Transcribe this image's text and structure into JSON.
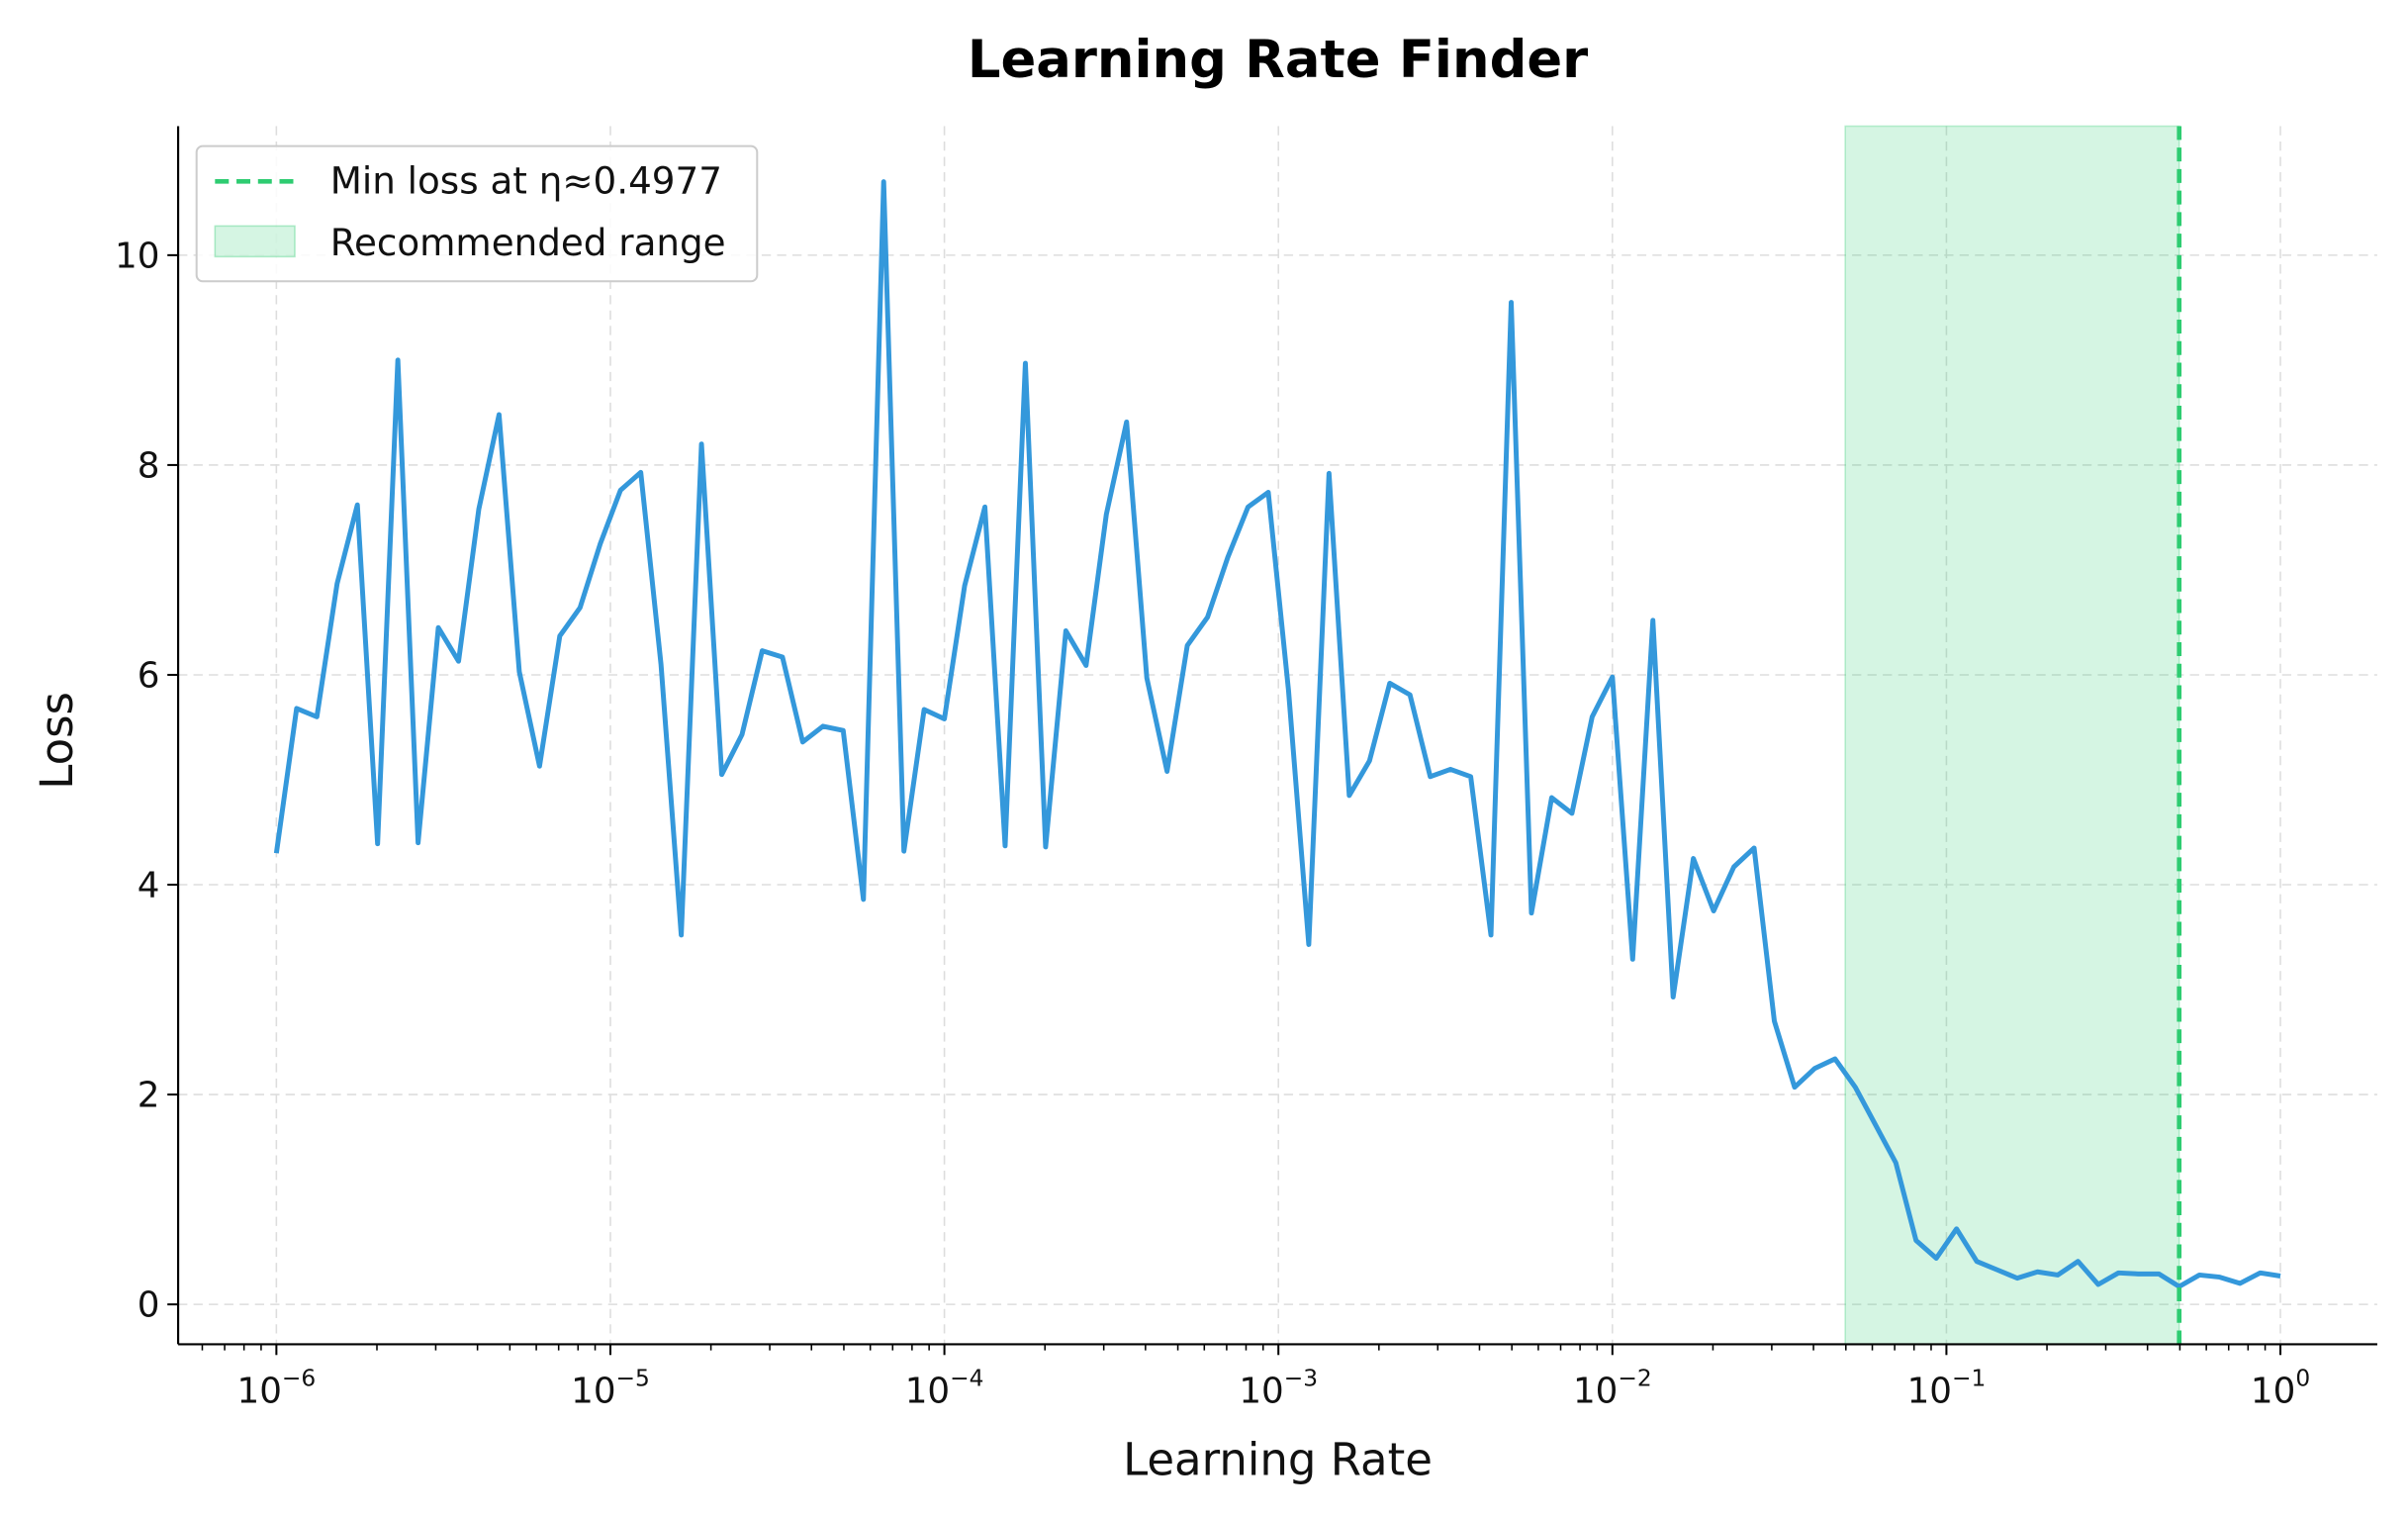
{
  "chart_data": {
    "type": "line",
    "title": "Learning Rate Finder",
    "xlabel": "Learning Rate",
    "ylabel": "Loss",
    "xscale": "log",
    "xlim": [
      5.08e-07,
      1.95
    ],
    "ylim": [
      -0.38,
      11.23
    ],
    "grid": true,
    "legend_placement": "top-left",
    "x_range": {
      "start": 1e-06,
      "stop": 1,
      "num_points": 100,
      "spacing": "log"
    },
    "xtick_labels": [
      {
        "value": 1e-06,
        "base": "10",
        "exp": "−6"
      },
      {
        "value": 1e-05,
        "base": "10",
        "exp": "−5"
      },
      {
        "value": 0.0001,
        "base": "10",
        "exp": "−4"
      },
      {
        "value": 0.001,
        "base": "10",
        "exp": "−3"
      },
      {
        "value": 0.01,
        "base": "10",
        "exp": "−2"
      },
      {
        "value": 0.1,
        "base": "10",
        "exp": "−1"
      },
      {
        "value": 1,
        "base": "10",
        "exp": "0"
      }
    ],
    "yticks": [
      0,
      2,
      4,
      6,
      8,
      10
    ],
    "ytick_labels": [
      "0",
      "2",
      "4",
      "6",
      "8",
      "10"
    ],
    "series": [
      {
        "color": "#3498db",
        "y": [
          4.3,
          5.68,
          5.6,
          6.87,
          7.62,
          4.39,
          9.0,
          4.4,
          6.45,
          6.13,
          7.58,
          8.48,
          6.03,
          5.13,
          6.37,
          6.64,
          7.25,
          7.76,
          7.93,
          6.1,
          3.52,
          8.2,
          5.05,
          5.43,
          6.23,
          6.17,
          5.36,
          5.51,
          5.47,
          3.86,
          10.7,
          4.32,
          5.67,
          5.58,
          6.85,
          7.6,
          4.37,
          8.97,
          4.36,
          6.42,
          6.09,
          7.53,
          8.41,
          5.97,
          5.08,
          6.28,
          6.55,
          7.12,
          7.6,
          7.74,
          5.85,
          3.43,
          7.92,
          4.85,
          5.18,
          5.92,
          5.81,
          5.03,
          5.1,
          5.03,
          3.52,
          9.55,
          3.73,
          4.83,
          4.68,
          5.6,
          5.98,
          3.29,
          6.52,
          2.93,
          4.25,
          3.75,
          4.17,
          4.35,
          2.7,
          2.07,
          2.25,
          2.34,
          2.07,
          1.71,
          1.35,
          0.61,
          0.44,
          0.72,
          0.41,
          0.33,
          0.25,
          0.31,
          0.28,
          0.41,
          0.19,
          0.3,
          0.29,
          0.29,
          0.17,
          0.28,
          0.26,
          0.2,
          0.3,
          0.27
        ]
      }
    ],
    "min_loss_line": {
      "x": 0.4977,
      "color": "#2ecc71",
      "style": "dashed",
      "legend": "Min loss at η≈0.4977"
    },
    "recommended_range": {
      "x": [
        0.04977,
        0.4977
      ],
      "color": "#2ecc71",
      "opacity": 0.2,
      "legend": "Recommended range"
    }
  }
}
